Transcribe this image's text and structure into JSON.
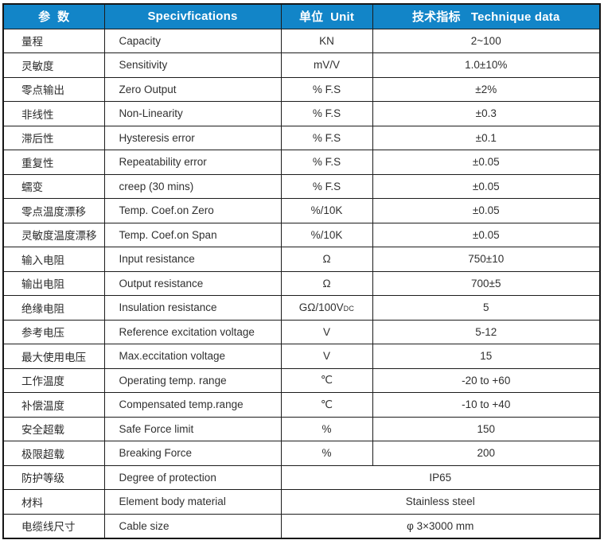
{
  "colors": {
    "header_bg": "#1285c8",
    "header_text": "#ffffff",
    "border": "#1c1c1c",
    "body_text": "#303030"
  },
  "table": {
    "header": {
      "param": "参  数",
      "spec": "Specivfications",
      "unit": "单位  Unit",
      "data": "技术指标   Technique data"
    },
    "rows": [
      {
        "param": "量程",
        "spec": "Capacity",
        "unit": "KN",
        "value": "2~100"
      },
      {
        "param": "灵敏度",
        "spec": "Sensitivity",
        "unit": "mV/V",
        "value": "1.0±10%"
      },
      {
        "param": "零点输出",
        "spec": "Zero Output",
        "unit": "% F.S",
        "value": "±2%"
      },
      {
        "param": "非线性",
        "spec": "Non-Linearity",
        "unit": "% F.S",
        "value": "±0.3"
      },
      {
        "param": "滞后性",
        "spec": "Hysteresis error",
        "unit": "% F.S",
        "value": "±0.1"
      },
      {
        "param": "重复性",
        "spec": "Repeatability error",
        "unit": "% F.S",
        "value": "±0.05"
      },
      {
        "param": "蠕变",
        "spec": "creep (30 mins)",
        "unit": "% F.S",
        "value": "±0.05"
      },
      {
        "param": "零点温度漂移",
        "spec": "Temp. Coef.on Zero",
        "unit": "%/10K",
        "value": "±0.05"
      },
      {
        "param": "灵敏度温度漂移",
        "spec": "Temp. Coef.on Span",
        "unit": "%/10K",
        "value": "±0.05"
      },
      {
        "param": "输入电阻",
        "spec": "Input resistance",
        "unit": "Ω",
        "value": "750±10"
      },
      {
        "param": "输出电阻",
        "spec": "Output resistance",
        "unit": "Ω",
        "value": "700±5"
      },
      {
        "param": "绝缘电阻",
        "spec": "Insulation resistance",
        "unit": "GΩ/100V",
        "unit_sub": "DC",
        "value": "5"
      },
      {
        "param": "参考电压",
        "spec": "Reference excitation voltage",
        "unit": "V",
        "value": "5-12"
      },
      {
        "param": "最大使用电压",
        "spec": "Max.eccitation voltage",
        "unit": "V",
        "value": "15"
      },
      {
        "param": "工作温度",
        "spec": "Operating temp. range",
        "unit": "℃",
        "value": "-20 to +60"
      },
      {
        "param": "补偿温度",
        "spec": "Compensated temp.range",
        "unit": "℃",
        "value": "-10 to +40"
      },
      {
        "param": "安全超载",
        "spec": "Safe Force limit",
        "unit": "%",
        "value": "150"
      },
      {
        "param": "极限超载",
        "spec": "Breaking Force",
        "unit": "%",
        "value": "200"
      },
      {
        "param": "防护等级",
        "spec": "Degree of protection",
        "merged": true,
        "value": "IP65"
      },
      {
        "param": "材料",
        "spec": "Element body material",
        "merged": true,
        "value": "Stainless steel"
      },
      {
        "param": "电缆线尺寸",
        "spec": "Cable size",
        "merged": true,
        "value": "φ 3×3000 mm"
      }
    ]
  }
}
